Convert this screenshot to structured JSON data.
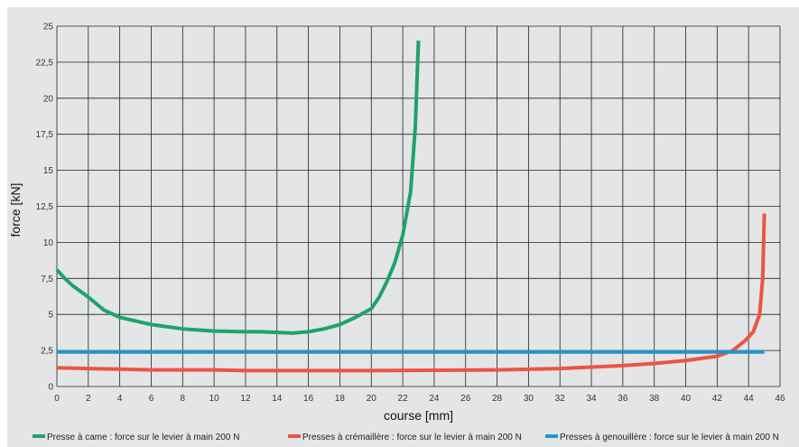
{
  "chart_data": {
    "type": "line",
    "xlabel": "course [mm]",
    "ylabel": "force [kN]",
    "xlim": [
      0,
      46
    ],
    "ylim": [
      0,
      25
    ],
    "x_ticks": [
      0,
      2,
      4,
      6,
      8,
      10,
      12,
      14,
      16,
      18,
      20,
      22,
      24,
      26,
      28,
      30,
      32,
      34,
      36,
      38,
      40,
      42,
      44,
      46
    ],
    "x_tick_labels": [
      "0",
      "2",
      "4",
      "6",
      "8",
      "10",
      "12",
      "14",
      "16",
      "18",
      "20",
      "22",
      "24",
      "26",
      "28",
      "30",
      "32",
      "34",
      "36",
      "38",
      "40",
      "42",
      "44",
      "46"
    ],
    "y_ticks": [
      0,
      2.5,
      5,
      7.5,
      10,
      12.5,
      15,
      17.5,
      20,
      22.5,
      25
    ],
    "y_tick_labels": [
      "0",
      "2,5",
      "5",
      "7,5",
      "10",
      "12,5",
      "15",
      "17,5",
      "20",
      "22,5",
      "25"
    ],
    "grid": true,
    "legend_position": "bottom",
    "plot_background": "#e4e5e6",
    "grid_color": "#222222",
    "series": [
      {
        "name": "Presse à came : force sur le levier à main 200 N",
        "color": "#1fa36a",
        "points": [
          [
            0,
            8.1
          ],
          [
            0.5,
            7.5
          ],
          [
            1,
            7.0
          ],
          [
            2,
            6.2
          ],
          [
            3,
            5.3
          ],
          [
            4,
            4.8
          ],
          [
            6,
            4.3
          ],
          [
            8,
            4.0
          ],
          [
            10,
            3.85
          ],
          [
            12,
            3.8
          ],
          [
            13,
            3.8
          ],
          [
            14,
            3.75
          ],
          [
            15,
            3.7
          ],
          [
            16,
            3.8
          ],
          [
            17,
            4.0
          ],
          [
            18,
            4.3
          ],
          [
            19,
            4.8
          ],
          [
            20,
            5.4
          ],
          [
            20.5,
            6.2
          ],
          [
            21,
            7.3
          ],
          [
            21.5,
            8.6
          ],
          [
            22,
            10.5
          ],
          [
            22.5,
            13.5
          ],
          [
            22.8,
            18
          ],
          [
            23,
            24
          ]
        ]
      },
      {
        "name": "Presses à crémaillère : force sur le levier à main 200 N",
        "color": "#ec5445",
        "points": [
          [
            0,
            1.3
          ],
          [
            2,
            1.25
          ],
          [
            4,
            1.2
          ],
          [
            6,
            1.15
          ],
          [
            10,
            1.15
          ],
          [
            12,
            1.1
          ],
          [
            20,
            1.1
          ],
          [
            28,
            1.15
          ],
          [
            32,
            1.25
          ],
          [
            34,
            1.35
          ],
          [
            36,
            1.45
          ],
          [
            38,
            1.6
          ],
          [
            40,
            1.8
          ],
          [
            42,
            2.1
          ],
          [
            43,
            2.5
          ],
          [
            43.8,
            3.2
          ],
          [
            44.3,
            3.8
          ],
          [
            44.7,
            5.0
          ],
          [
            44.9,
            7.5
          ],
          [
            45,
            12
          ]
        ]
      },
      {
        "name": "Presses à genouillère : force sur le levier à main 200 N",
        "color": "#2196c8",
        "points": [
          [
            0,
            2.4
          ],
          [
            45,
            2.4
          ]
        ]
      }
    ]
  }
}
